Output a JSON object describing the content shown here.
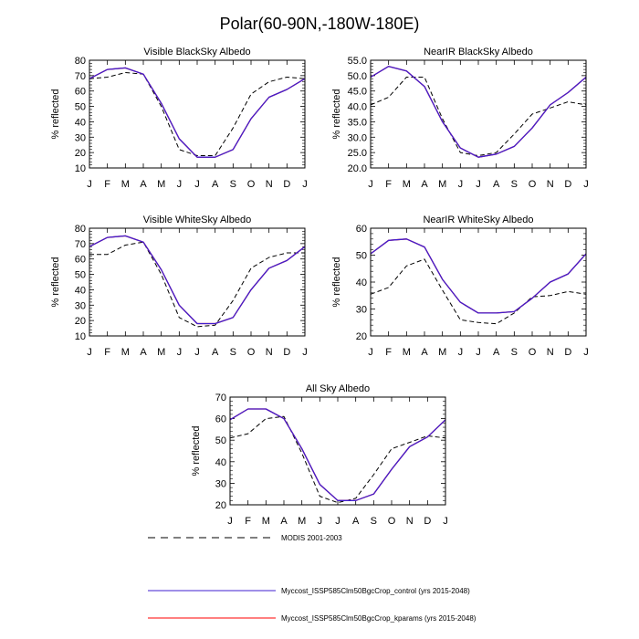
{
  "title": "Polar(60-90N,-180W-180E)",
  "colors": {
    "modis": "#000000",
    "control": "#3f1fd0",
    "kparams": "#ff0000"
  },
  "months": [
    "J",
    "F",
    "M",
    "A",
    "M",
    "J",
    "J",
    "A",
    "S",
    "O",
    "N",
    "D",
    "J"
  ],
  "legend": {
    "modis": "MODIS 2001-2003",
    "control": "Myccost_ISSP585Clm50BgcCrop_control (yrs 2015-2048)",
    "kparams": "Myccost_ISSP585Clm50BgcCrop_kparams (yrs 2015-2048)"
  },
  "chart_data": [
    {
      "type": "line",
      "title": "Visible BlackSky Albedo",
      "ylabel": "% reflected",
      "x": [
        "J",
        "F",
        "M",
        "A",
        "M",
        "J",
        "J",
        "A",
        "S",
        "O",
        "N",
        "D",
        "J"
      ],
      "ylim": [
        10,
        80
      ],
      "yticks": [
        10,
        20,
        30,
        40,
        50,
        60,
        70,
        80
      ],
      "ytick_labels": [
        "10",
        "20",
        "30",
        "40",
        "50",
        "60",
        "70",
        "80"
      ],
      "series": [
        {
          "key": "modis",
          "values": [
            68,
            69,
            72,
            71,
            50,
            22,
            18,
            18,
            36,
            58,
            66,
            69,
            68
          ]
        },
        {
          "key": "control",
          "values": [
            68,
            74,
            75,
            71,
            52,
            29,
            17,
            17,
            22,
            42,
            56,
            61,
            68
          ]
        },
        {
          "key": "kparams",
          "values": [
            68,
            74,
            75,
            71,
            52,
            29,
            17,
            17,
            22,
            42,
            56,
            61,
            68
          ]
        }
      ]
    },
    {
      "type": "line",
      "title": "NearIR BlackSky Albedo",
      "ylabel": "% reflected",
      "x": [
        "J",
        "F",
        "M",
        "A",
        "M",
        "J",
        "J",
        "A",
        "S",
        "O",
        "N",
        "D",
        "J"
      ],
      "ylim": [
        20,
        55
      ],
      "yticks": [
        20,
        25,
        30,
        35,
        40,
        45,
        50,
        55
      ],
      "ytick_labels": [
        "20.0",
        "25.0",
        "30.0",
        "35.0",
        "40.0",
        "45.0",
        "50.0",
        "55.0"
      ],
      "series": [
        {
          "key": "modis",
          "values": [
            40.5,
            43,
            49.5,
            49.5,
            36,
            25,
            24,
            25,
            31,
            37.5,
            39.5,
            41.5,
            40.5
          ]
        },
        {
          "key": "control",
          "values": [
            49.5,
            53,
            51.5,
            46.5,
            35,
            26.5,
            23.5,
            24.5,
            27,
            33,
            40.5,
            44.5,
            49.5
          ]
        },
        {
          "key": "kparams",
          "values": [
            49.5,
            53,
            51.5,
            46.5,
            35,
            26.5,
            23.5,
            24.5,
            27,
            33,
            40.5,
            44.5,
            49.5
          ]
        }
      ]
    },
    {
      "type": "line",
      "title": "Visible WhiteSky Albedo",
      "ylabel": "% reflected",
      "x": [
        "J",
        "F",
        "M",
        "A",
        "M",
        "J",
        "J",
        "A",
        "S",
        "O",
        "N",
        "D",
        "J"
      ],
      "ylim": [
        10,
        80
      ],
      "yticks": [
        10,
        20,
        30,
        40,
        50,
        60,
        70,
        80
      ],
      "ytick_labels": [
        "10",
        "20",
        "30",
        "40",
        "50",
        "60",
        "70",
        "80"
      ],
      "series": [
        {
          "key": "modis",
          "values": [
            63,
            63,
            69,
            71,
            50,
            22,
            16,
            17,
            33,
            54,
            61,
            64,
            64
          ]
        },
        {
          "key": "control",
          "values": [
            68,
            74,
            75,
            71,
            53,
            30,
            18,
            18,
            22,
            40,
            54,
            59,
            68
          ]
        },
        {
          "key": "kparams",
          "values": [
            68,
            74,
            75,
            71,
            53,
            30,
            18,
            18,
            22,
            40,
            54,
            59,
            68
          ]
        }
      ]
    },
    {
      "type": "line",
      "title": "NearIR WhiteSky Albedo",
      "ylabel": "% reflected",
      "x": [
        "J",
        "F",
        "M",
        "A",
        "M",
        "J",
        "J",
        "A",
        "S",
        "O",
        "N",
        "D",
        "J"
      ],
      "ylim": [
        20,
        60
      ],
      "yticks": [
        20,
        30,
        40,
        50,
        60
      ],
      "ytick_labels": [
        "20",
        "30",
        "40",
        "50",
        "60"
      ],
      "series": [
        {
          "key": "modis",
          "values": [
            35.5,
            38,
            46,
            48.5,
            37,
            26,
            25,
            24.5,
            28.5,
            34.5,
            35,
            36.5,
            35.5
          ]
        },
        {
          "key": "control",
          "values": [
            50.5,
            55.5,
            56,
            53,
            41,
            32.5,
            28.5,
            28.5,
            29,
            34,
            40,
            43,
            50.5
          ]
        },
        {
          "key": "kparams",
          "values": [
            50.5,
            55.5,
            56,
            53,
            41,
            32.5,
            28.5,
            28.5,
            29,
            34,
            40,
            43,
            50.5
          ]
        }
      ]
    },
    {
      "type": "line",
      "title": "All Sky Albedo",
      "ylabel": "% reflected",
      "x": [
        "J",
        "F",
        "M",
        "A",
        "M",
        "J",
        "J",
        "A",
        "S",
        "O",
        "N",
        "D",
        "J"
      ],
      "ylim": [
        20,
        70
      ],
      "yticks": [
        20,
        30,
        40,
        50,
        60,
        70
      ],
      "ytick_labels": [
        "20",
        "30",
        "40",
        "50",
        "60",
        "70"
      ],
      "series": [
        {
          "key": "modis",
          "values": [
            51,
            53,
            60,
            61,
            44,
            24,
            21,
            23,
            34,
            46,
            49,
            52,
            51
          ]
        },
        {
          "key": "control",
          "values": [
            59.5,
            64.5,
            64.5,
            60,
            46,
            29.5,
            22,
            22,
            25,
            36.5,
            47,
            51.5,
            59.5
          ]
        },
        {
          "key": "kparams",
          "values": [
            59.5,
            64.5,
            64.5,
            60,
            46,
            29.5,
            22,
            22,
            25,
            36.5,
            47,
            51.5,
            59.5
          ]
        }
      ]
    }
  ]
}
